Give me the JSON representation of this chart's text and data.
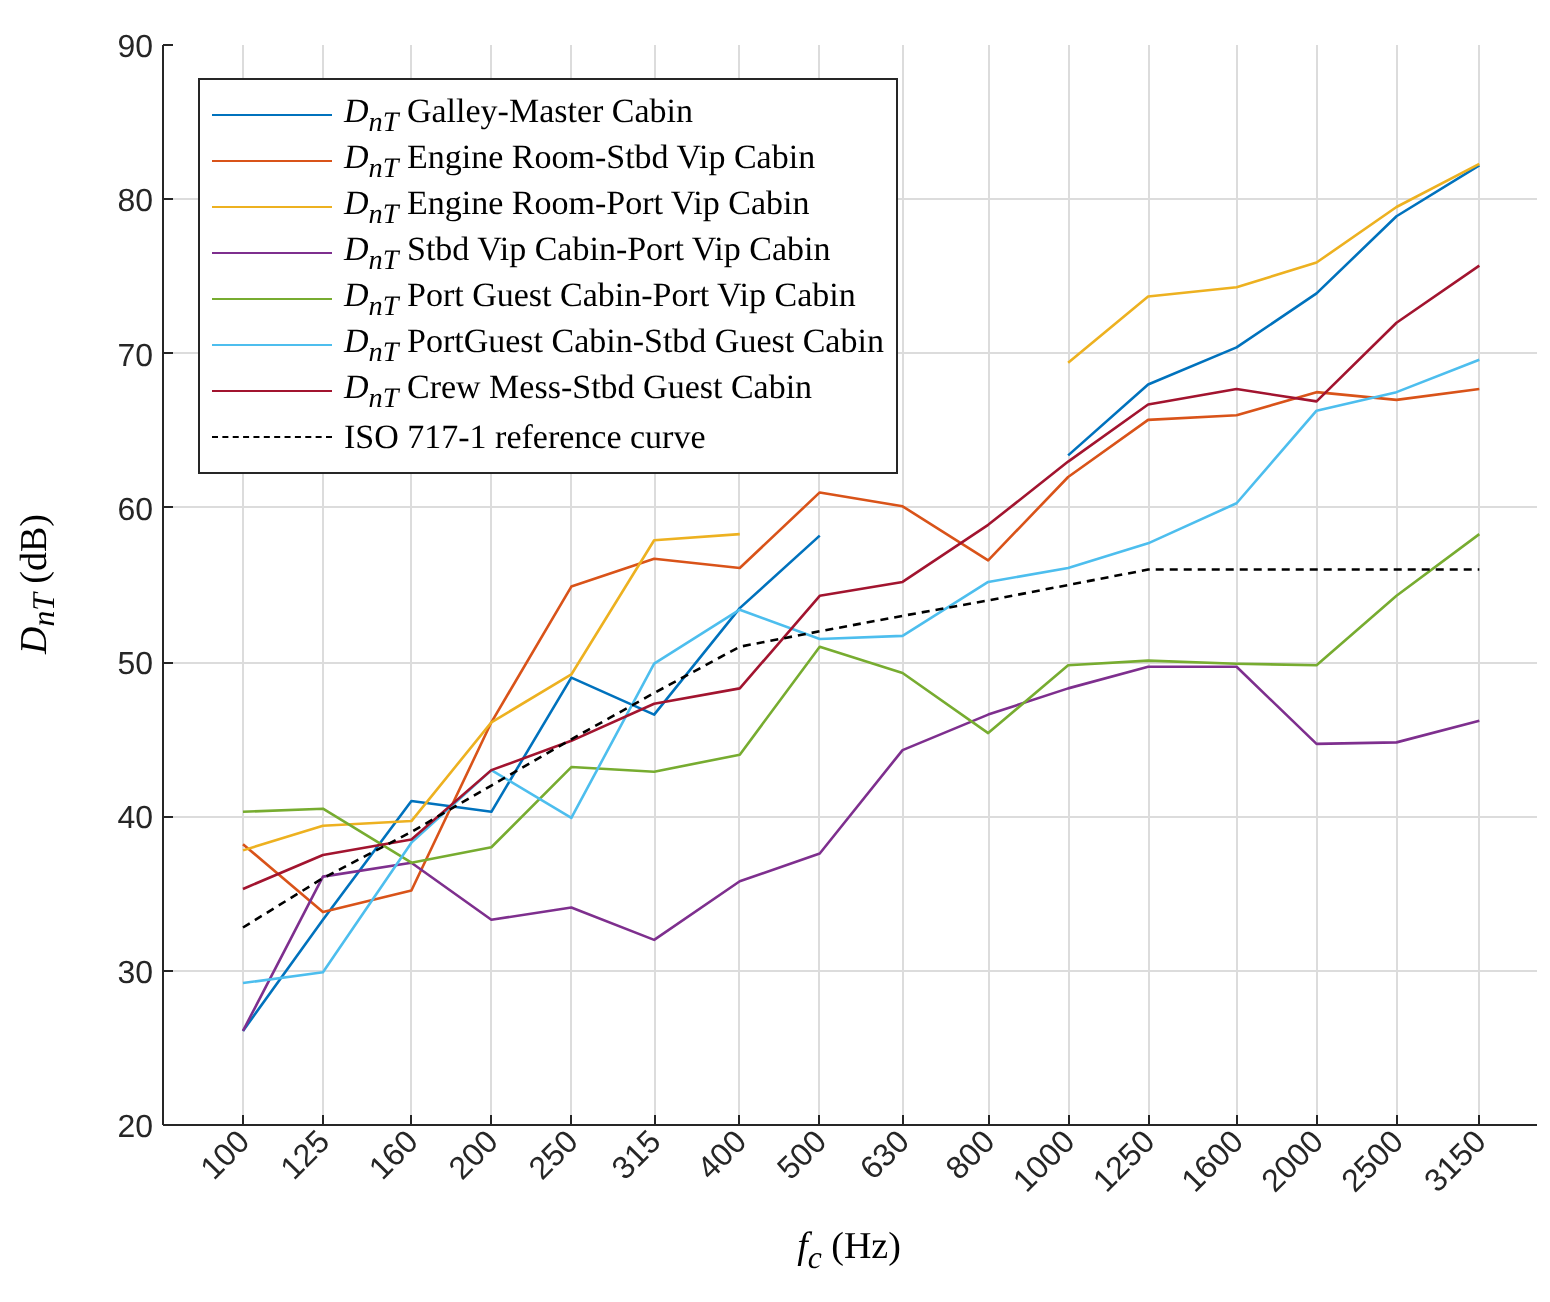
{
  "chart_data": {
    "type": "line",
    "xlabel": "f$_{c}$ (Hz)",
    "ylabel": "D$_{nT}$ (dB)",
    "log": "x",
    "x": [
      100,
      125,
      160,
      200,
      250,
      315,
      400,
      500,
      630,
      800,
      1000,
      1250,
      1600,
      2000,
      2500,
      3150
    ],
    "xlim": [
      80,
      3700
    ],
    "xticks": [
      100,
      125,
      160,
      200,
      250,
      315,
      400,
      500,
      630,
      800,
      1000,
      1250,
      1600,
      2000,
      2500,
      3150
    ],
    "ylim": [
      20,
      90
    ],
    "yticks": [
      20,
      30,
      40,
      50,
      60,
      70,
      80,
      90
    ],
    "grid": true,
    "legend": "top left",
    "marker": "none",
    "series": [
      {
        "name": "D$_{nT}$ Galley-Master Cabin",
        "color": "#0072bd",
        "values": [
          26.1,
          33.3,
          41.0,
          40.3,
          49.0,
          46.6,
          53.5,
          58.2,
          null,
          null,
          63.4,
          68.0,
          70.4,
          73.9,
          78.9,
          82.2
        ]
      },
      {
        "name": "D$_{nT}$ Engine Room-Stbd Vip Cabin",
        "color": "#d95319",
        "values": [
          38.2,
          33.8,
          35.2,
          46.1,
          54.9,
          56.7,
          56.1,
          61.0,
          60.1,
          56.6,
          62.0,
          65.7,
          66.0,
          67.5,
          67.0,
          67.7
        ]
      },
      {
        "name": "D$_{nT}$ Engine Room-Port Vip Cabin",
        "color": "#edb120",
        "values": [
          37.8,
          39.4,
          39.7,
          46.1,
          49.2,
          57.9,
          58.3,
          null,
          null,
          null,
          69.4,
          73.7,
          74.3,
          75.9,
          79.5,
          82.3
        ]
      },
      {
        "name": "D$_{nT}$ Stbd Vip Cabin-Port Vip Cabin",
        "color": "#7e2f8e",
        "values": [
          26.1,
          36.1,
          37.0,
          33.3,
          34.1,
          32.0,
          35.8,
          37.6,
          44.3,
          46.6,
          48.3,
          49.7,
          49.7,
          44.7,
          44.8,
          46.2
        ]
      },
      {
        "name": "D$_{nT}$ Port Guest Cabin-Port Vip Cabin",
        "color": "#77ac30",
        "values": [
          40.3,
          40.5,
          37.0,
          38.0,
          43.2,
          42.9,
          44.0,
          51.0,
          49.3,
          45.4,
          49.8,
          50.1,
          49.9,
          49.8,
          54.3,
          58.3
        ]
      },
      {
        "name": "D$_{nT}$ PortGuest Cabin-Stbd Guest Cabin",
        "color": "#4dbeee",
        "values": [
          29.2,
          29.9,
          38.3,
          43.0,
          39.9,
          49.9,
          53.4,
          51.5,
          51.7,
          55.2,
          56.1,
          57.7,
          60.3,
          66.3,
          67.5,
          69.6
        ]
      },
      {
        "name": "D$_{nT}$ Crew Mess-Stbd Guest Cabin",
        "color": "#a2142f",
        "values": [
          35.3,
          37.5,
          38.5,
          43.0,
          44.9,
          47.3,
          48.3,
          54.3,
          55.2,
          58.9,
          63.0,
          66.7,
          67.7,
          66.9,
          72.0,
          75.7
        ]
      },
      {
        "name": "ISO 717-1 reference curve",
        "color": "#000000",
        "line_style": "dashed",
        "values": [
          32.8,
          36.0,
          39.0,
          42.0,
          45.0,
          48.0,
          51.0,
          52.0,
          53.0,
          54.0,
          55.0,
          56.0,
          56.0,
          56.0,
          56.0,
          56.0
        ]
      }
    ]
  }
}
